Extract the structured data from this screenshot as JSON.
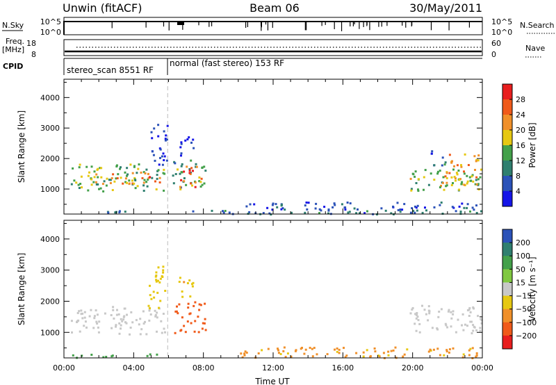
{
  "header": {
    "station": "Unwin (fitACF)",
    "beam": "Beam 06",
    "date": "30/May/2011"
  },
  "summary_panels": {
    "nsky_label": "N.Sky",
    "nsky_ticks": [
      "10^5",
      "10^0"
    ],
    "nsearch_label": "N.Search",
    "nsearch_ticks": [
      "10^5",
      "10^0"
    ],
    "freq_label": "Freq.",
    "freq_unit": "[MHz]",
    "freq_ticks": [
      "18",
      "8"
    ],
    "nave_label": "Nave",
    "nave_ticks": [
      "60",
      "0"
    ],
    "cpid_label": "CPID",
    "cpid_segments": [
      {
        "label": "stereo_scan 8551 RF",
        "start_hour": 0,
        "end_hour": 5.95
      },
      {
        "label": "normal (fast stereo) 153 RF",
        "start_hour": 5.95,
        "end_hour": 24
      }
    ]
  },
  "chart_data": [
    {
      "type": "heatmap",
      "panel": "power",
      "xlabel": "",
      "ylabel": "Slant Range [km]",
      "xlim": [
        0,
        24
      ],
      "ylim": [
        180,
        4600
      ],
      "yticks": [
        1000,
        2000,
        3000,
        4000
      ],
      "xticks": [
        0,
        4,
        8,
        12,
        16,
        20,
        24
      ],
      "xtick_labels": [
        "00:00",
        "04:00",
        "08:00",
        "12:00",
        "16:00",
        "20:00",
        "00:00"
      ],
      "colorbar": {
        "label": "Power [dB]",
        "range": [
          0,
          32
        ],
        "ticks": [
          4,
          8,
          12,
          16,
          20,
          24,
          28
        ],
        "colors": [
          "#1515e8",
          "#2b52b8",
          "#2f7f6f",
          "#43a04a",
          "#e6c812",
          "#f0902a",
          "#f05a1a",
          "#e81e1e"
        ]
      },
      "regions": [
        {
          "t0": 0.3,
          "t1": 5.8,
          "r0": 950,
          "r1": 1850,
          "value": 14
        },
        {
          "t0": 1.5,
          "t1": 5.6,
          "r0": 1200,
          "r1": 1600,
          "value": 22
        },
        {
          "t0": 4.8,
          "t1": 5.9,
          "r0": 1800,
          "r1": 3150,
          "value": 4
        },
        {
          "t0": 6.2,
          "t1": 8.1,
          "r0": 1000,
          "r1": 2000,
          "value": 12
        },
        {
          "t0": 6.6,
          "t1": 7.9,
          "r0": 1050,
          "r1": 1850,
          "value": 26
        },
        {
          "t0": 6.5,
          "t1": 7.4,
          "r0": 2100,
          "r1": 2800,
          "value": 4
        },
        {
          "t0": 19.8,
          "t1": 24.0,
          "r0": 950,
          "r1": 1700,
          "value": 15
        },
        {
          "t0": 21.5,
          "t1": 23.8,
          "r0": 1100,
          "r1": 2200,
          "value": 20
        },
        {
          "t0": 21.0,
          "t1": 22.0,
          "r0": 1800,
          "r1": 2300,
          "value": 6
        },
        {
          "t0": 0.3,
          "t1": 24.0,
          "r0": 200,
          "r1": 330,
          "value": 9
        },
        {
          "t0": 10.0,
          "t1": 24.0,
          "r0": 330,
          "r1": 600,
          "value": 6
        }
      ],
      "data_gaps": [
        [
          23.1,
          23.15
        ],
        [
          22.0,
          22.05
        ]
      ]
    },
    {
      "type": "heatmap",
      "panel": "velocity",
      "xlabel": "Time UT",
      "ylabel": "Slant Range [km]",
      "xlim": [
        0,
        24
      ],
      "ylim": [
        180,
        4600
      ],
      "yticks": [
        1000,
        2000,
        3000,
        4000
      ],
      "xticks": [
        0,
        4,
        8,
        12,
        16,
        20,
        24
      ],
      "xtick_labels": [
        "00:00",
        "04:00",
        "08:00",
        "12:00",
        "16:00",
        "20:00",
        "00:00"
      ],
      "colorbar": {
        "label": "Velocity [m s⁻¹]",
        "range": [
          -250,
          250
        ],
        "ticks": [
          200,
          100,
          50,
          15,
          -15,
          -50,
          -100,
          -200
        ],
        "tick_labels": [
          "200",
          "100",
          "50",
          "15",
          "−15",
          "−50",
          "−100",
          "−200"
        ],
        "colors": [
          "#e81e1e",
          "#f05a1a",
          "#f0902a",
          "#e6c812",
          "#c8c8c8",
          "#80c840",
          "#43a04a",
          "#2f7f6f",
          "#2b52b8"
        ]
      },
      "regions": [
        {
          "t0": 0.3,
          "t1": 5.8,
          "r0": 950,
          "r1": 1850,
          "value": 0
        },
        {
          "t0": 4.8,
          "t1": 5.9,
          "r0": 1800,
          "r1": 3150,
          "value": -30
        },
        {
          "t0": 6.2,
          "t1": 8.1,
          "r0": 1000,
          "r1": 2000,
          "value": -150
        },
        {
          "t0": 6.5,
          "t1": 7.4,
          "r0": 2100,
          "r1": 2800,
          "value": -40
        },
        {
          "t0": 19.8,
          "t1": 24.0,
          "r0": 950,
          "r1": 1900,
          "value": 0
        },
        {
          "t0": 0.3,
          "t1": 5.5,
          "r0": 200,
          "r1": 330,
          "value": 60
        },
        {
          "t0": 10.0,
          "t1": 24.0,
          "r0": 200,
          "r1": 550,
          "value": -60
        }
      ]
    }
  ]
}
